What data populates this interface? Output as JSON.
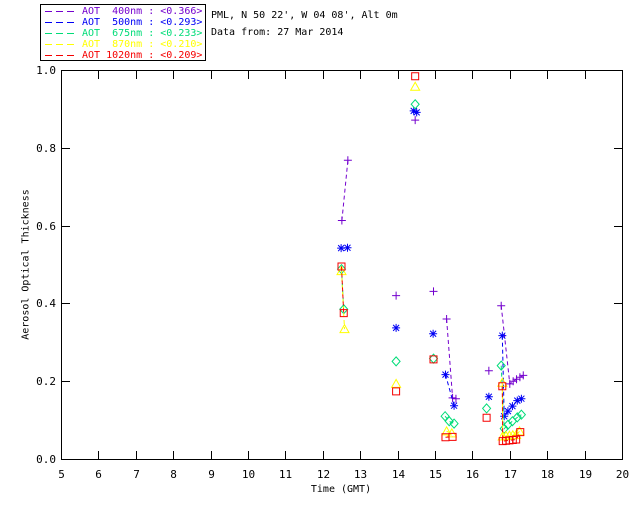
{
  "header": {
    "line1": "PML, N 50 22', W 04 08', Alt 0m",
    "line2": "Data from: 27 Mar 2014"
  },
  "chart_data": {
    "type": "scatter",
    "xlabel": "Time (GMT)",
    "ylabel": "Aerosol Optical Thickness",
    "xlim": [
      5,
      20
    ],
    "ylim": [
      0.0,
      1.0
    ],
    "xticks": [
      5,
      6,
      7,
      8,
      9,
      10,
      11,
      12,
      13,
      14,
      15,
      16,
      17,
      18,
      19,
      20
    ],
    "yticks": [
      0.0,
      0.2,
      0.4,
      0.6,
      0.8,
      1.0
    ],
    "grid": false,
    "legend_position": "top-left",
    "line_style": "dashed",
    "series": [
      {
        "name": "AOT  400nm",
        "wavelength_nm": 400,
        "mean_value": "<0.366>",
        "color": "#7300CE",
        "marker": "plus",
        "segments": [
          [
            [
              12.51,
              0.613
            ],
            [
              12.67,
              0.768
            ]
          ],
          [
            [
              13.96,
              0.42
            ]
          ],
          [
            [
              14.47,
              0.871
            ]
          ],
          [
            [
              14.96,
              0.431
            ]
          ],
          [
            [
              15.31,
              0.36
            ],
            [
              15.47,
              0.157
            ],
            [
              15.56,
              0.155
            ]
          ],
          [
            [
              16.44,
              0.227
            ]
          ],
          [
            [
              16.77,
              0.394
            ],
            [
              17.0,
              0.193
            ],
            [
              17.09,
              0.2
            ],
            [
              17.18,
              0.205
            ],
            [
              17.27,
              0.21
            ],
            [
              17.36,
              0.215
            ]
          ]
        ]
      },
      {
        "name": "AOT  500nm",
        "wavelength_nm": 500,
        "mean_value": "<0.293>",
        "color": "#0000F5",
        "marker": "asterisk",
        "segments": [
          [
            [
              12.49,
              0.542
            ],
            [
              12.66,
              0.543
            ]
          ],
          [
            [
              13.96,
              0.337
            ]
          ],
          [
            [
              14.43,
              0.895
            ],
            [
              14.51,
              0.891
            ]
          ],
          [
            [
              14.95,
              0.322
            ]
          ],
          [
            [
              15.28,
              0.217
            ],
            [
              15.51,
              0.137
            ]
          ],
          [
            [
              16.44,
              0.16
            ]
          ],
          [
            [
              16.8,
              0.317
            ],
            [
              16.85,
              0.11
            ],
            [
              16.95,
              0.123
            ],
            [
              17.07,
              0.136
            ],
            [
              17.2,
              0.15
            ],
            [
              17.31,
              0.155
            ]
          ]
        ]
      },
      {
        "name": "AOT  675nm",
        "wavelength_nm": 675,
        "mean_value": "<0.233>",
        "color": "#00DC78",
        "marker": "diamond",
        "segments": [
          [
            [
              12.5,
              0.488
            ],
            [
              12.56,
              0.385
            ]
          ],
          [
            [
              13.96,
              0.251
            ]
          ],
          [
            [
              14.47,
              0.912
            ]
          ],
          [
            [
              14.96,
              0.258
            ]
          ],
          [
            [
              15.27,
              0.11
            ],
            [
              15.38,
              0.097
            ],
            [
              15.51,
              0.091
            ]
          ],
          [
            [
              16.38,
              0.13
            ]
          ],
          [
            [
              16.77,
              0.24
            ],
            [
              16.85,
              0.078
            ],
            [
              16.95,
              0.088
            ],
            [
              17.07,
              0.097
            ],
            [
              17.2,
              0.107
            ],
            [
              17.31,
              0.114
            ]
          ]
        ]
      },
      {
        "name": "AOT  870nm",
        "wavelength_nm": 870,
        "mean_value": "<0.210>",
        "color": "#FFFF00",
        "marker": "triangle",
        "segments": [
          [
            [
              12.5,
              0.483
            ],
            [
              12.58,
              0.334
            ]
          ],
          [
            [
              13.96,
              0.193
            ]
          ],
          [
            [
              14.47,
              0.957
            ]
          ],
          [
            [
              15.31,
              0.071
            ],
            [
              15.45,
              0.066
            ]
          ],
          [
            [
              16.8,
              0.196
            ],
            [
              16.81,
              0.058
            ],
            [
              16.9,
              0.059
            ],
            [
              16.99,
              0.06
            ],
            [
              17.08,
              0.061
            ],
            [
              17.17,
              0.062
            ],
            [
              17.26,
              0.071
            ]
          ]
        ]
      },
      {
        "name": "AOT 1020nm",
        "wavelength_nm": 1020,
        "mean_value": "<0.209>",
        "color": "#F50000",
        "marker": "square",
        "segments": [
          [
            [
              12.5,
              0.495
            ],
            [
              12.56,
              0.375
            ]
          ],
          [
            [
              13.96,
              0.174
            ]
          ],
          [
            [
              14.47,
              0.984
            ]
          ],
          [
            [
              14.96,
              0.256
            ]
          ],
          [
            [
              15.28,
              0.056
            ],
            [
              15.47,
              0.057
            ]
          ],
          [
            [
              16.38,
              0.106
            ]
          ],
          [
            [
              16.8,
              0.187
            ],
            [
              16.81,
              0.046
            ],
            [
              16.9,
              0.047
            ],
            [
              16.99,
              0.048
            ],
            [
              17.08,
              0.049
            ],
            [
              17.17,
              0.05
            ],
            [
              17.28,
              0.069
            ]
          ]
        ]
      }
    ]
  }
}
